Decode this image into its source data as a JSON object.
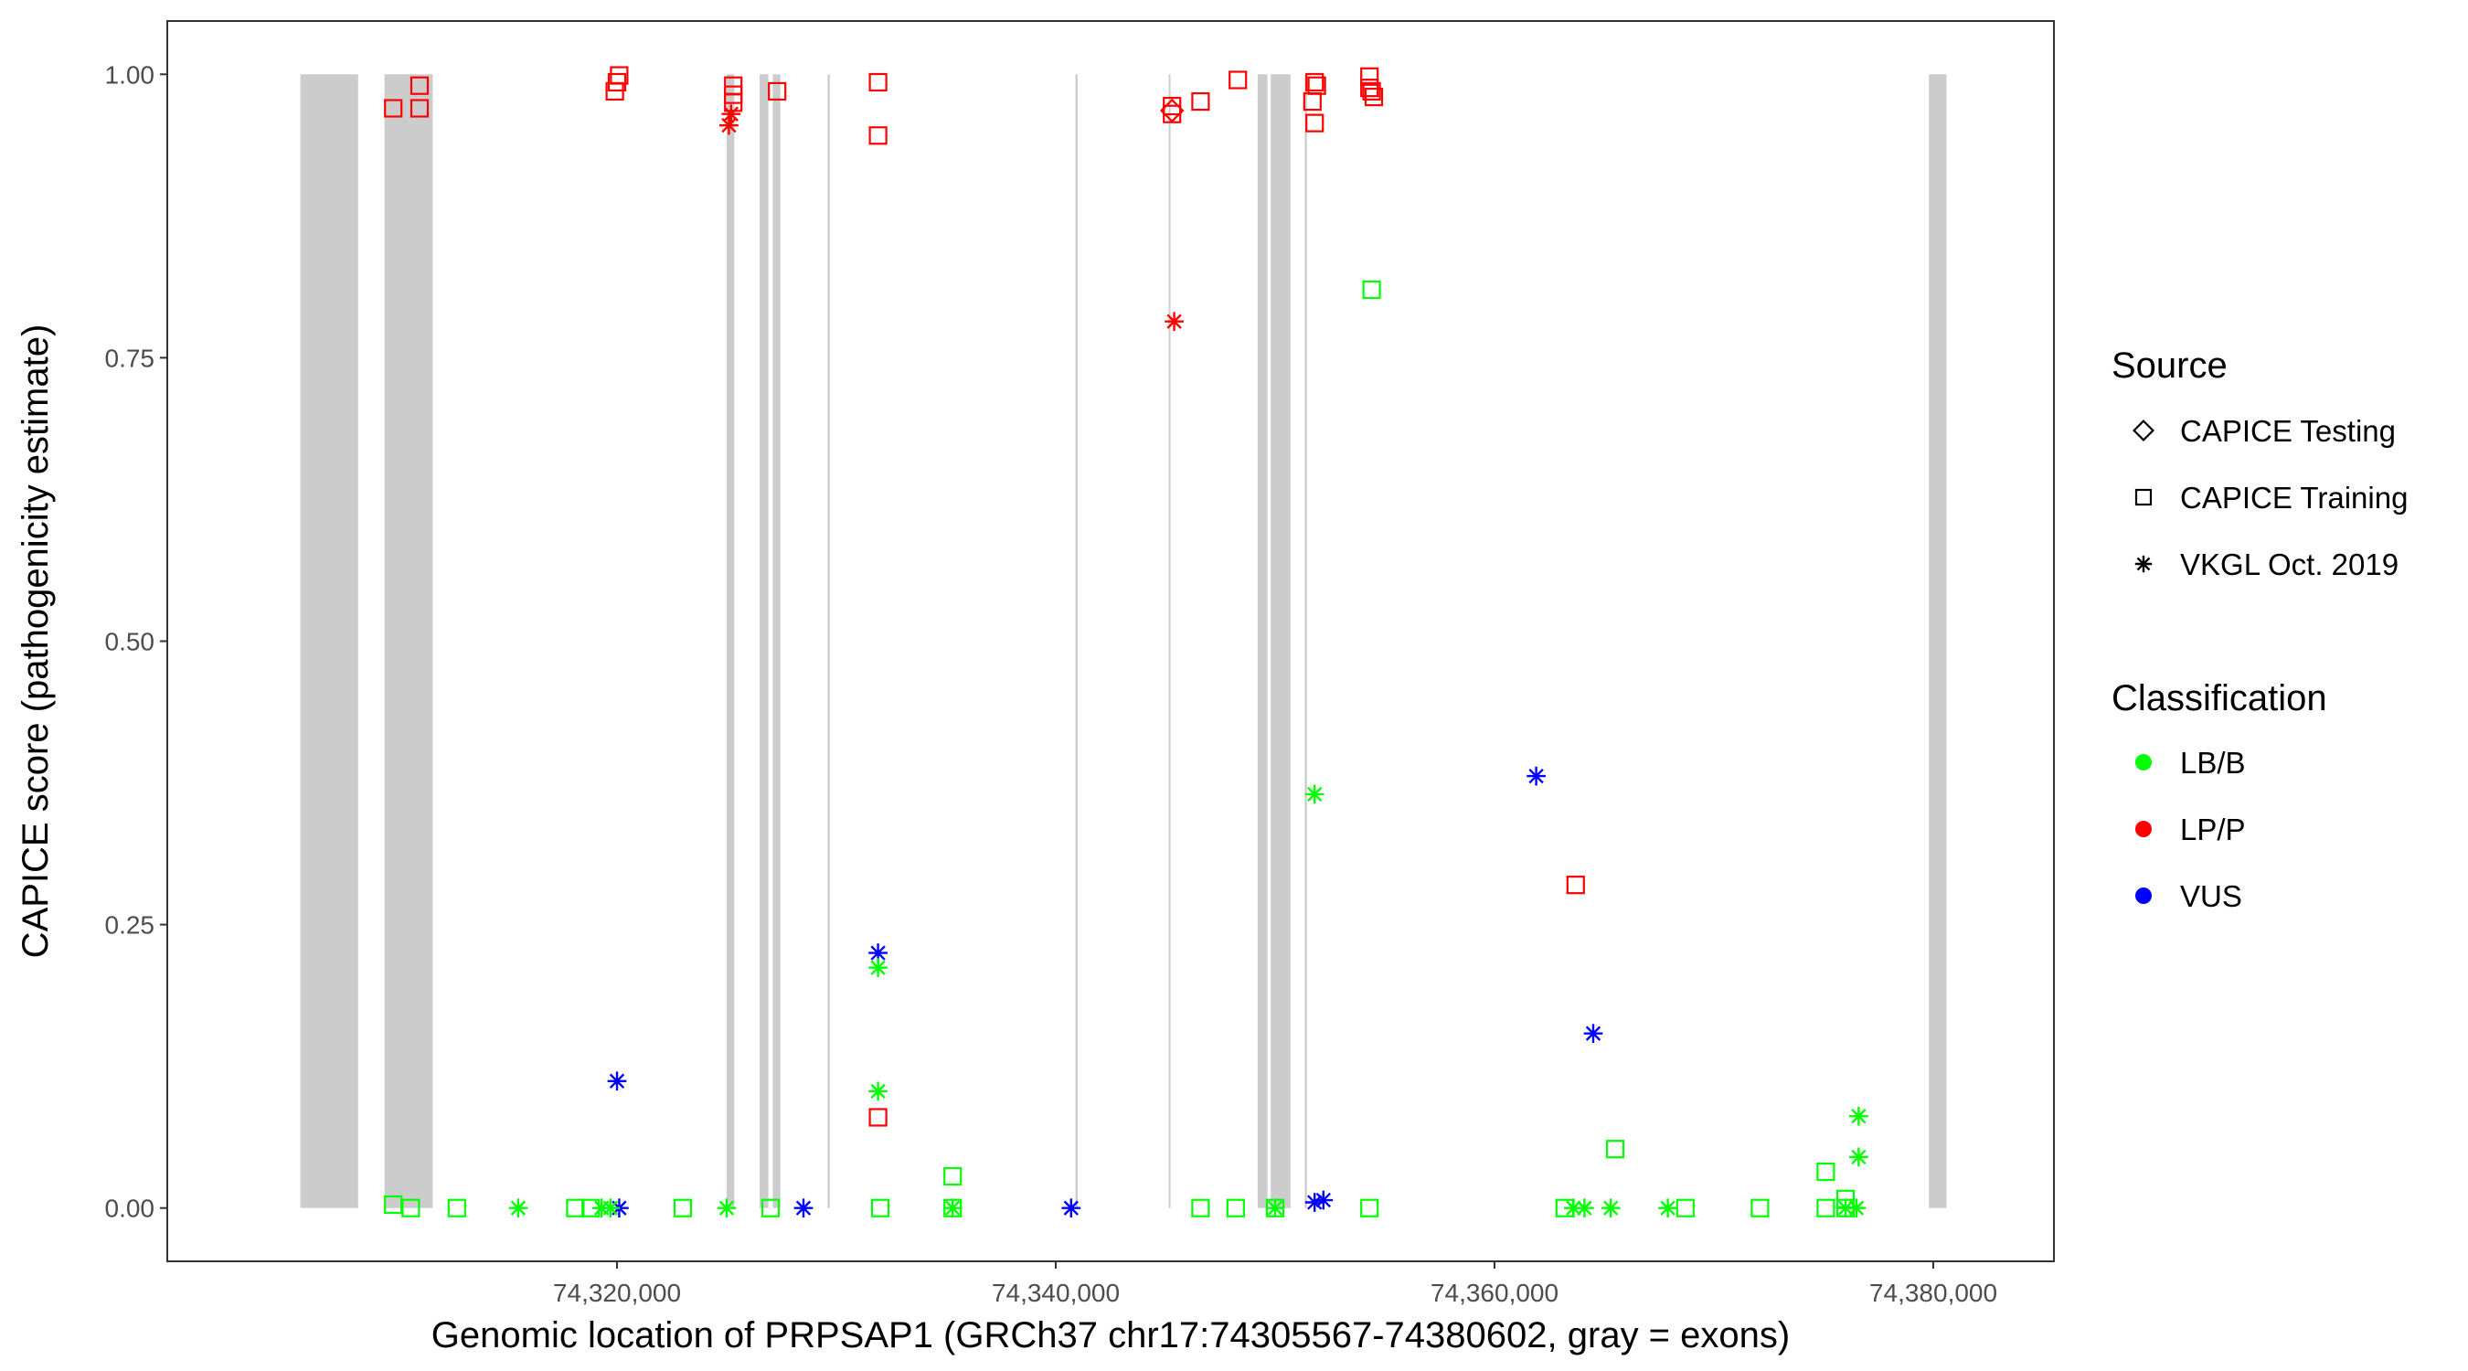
{
  "chart_data": {
    "type": "scatter",
    "xlabel": "Genomic location of PRPSAP1 (GRCh37 chr17:74305567-74380602, gray = exons)",
    "ylabel": "CAPICE score (pathogenicity estimate)",
    "xlim": [
      74299500,
      74385500
    ],
    "ylim": [
      -0.047,
      1.047
    ],
    "x_ticks": [
      74320000,
      74340000,
      74360000,
      74380000
    ],
    "x_tick_labels": [
      "74,320,000",
      "74,340,000",
      "74,360,000",
      "74,380,000"
    ],
    "y_ticks": [
      0,
      0.25,
      0.5,
      0.75,
      1.0
    ],
    "y_tick_labels": [
      "0.00",
      "0.25",
      "0.50",
      "0.75",
      "1.00"
    ],
    "grid": false,
    "exon_color": "#cccccc",
    "exons": [
      [
        74305567,
        74308200
      ],
      [
        74309400,
        74311600
      ],
      [
        74325000,
        74325350
      ],
      [
        74326500,
        74326900
      ],
      [
        74327100,
        74327450
      ],
      [
        74329600,
        74329700
      ],
      [
        74340900,
        74341000
      ],
      [
        74345150,
        74345230
      ],
      [
        74349200,
        74349650
      ],
      [
        74349800,
        74350700
      ],
      [
        74351350,
        74351450
      ],
      [
        74379800,
        74380602
      ]
    ],
    "legend": {
      "position": "right",
      "source_title": "Source",
      "source_items": [
        {
          "label": "CAPICE Testing",
          "shape": "diamond"
        },
        {
          "label": "CAPICE Training",
          "shape": "square"
        },
        {
          "label": "VKGL Oct. 2019",
          "shape": "asterisk"
        }
      ],
      "class_title": "Classification",
      "class_items": [
        {
          "label": "LB/B",
          "color": "#00ff00"
        },
        {
          "label": "LP/P",
          "color": "#ff0000"
        },
        {
          "label": "VUS",
          "color": "#0000ff"
        }
      ]
    },
    "series": [
      {
        "source": "CAPICE Training",
        "class": "LP/P",
        "shape": "square",
        "color": "#ff0000",
        "points": [
          [
            74309800,
            0.97
          ],
          [
            74311000,
            0.97
          ],
          [
            74311000,
            0.99
          ],
          [
            74319900,
            0.985
          ],
          [
            74320000,
            0.993
          ],
          [
            74320100,
            0.999
          ],
          [
            74325300,
            0.99
          ],
          [
            74325300,
            0.982
          ],
          [
            74325300,
            0.975
          ],
          [
            74327300,
            0.985
          ],
          [
            74331900,
            0.993
          ],
          [
            74331900,
            0.946
          ],
          [
            74345300,
            0.972
          ],
          [
            74345300,
            0.965
          ],
          [
            74346600,
            0.976
          ],
          [
            74348300,
            0.995
          ],
          [
            74351800,
            0.993
          ],
          [
            74351900,
            0.99
          ],
          [
            74351700,
            0.976
          ],
          [
            74351800,
            0.957
          ],
          [
            74354300,
            0.998
          ],
          [
            74354300,
            0.988
          ],
          [
            74354400,
            0.985
          ],
          [
            74354500,
            0.98
          ],
          [
            74363700,
            0.285
          ],
          [
            74331900,
            0.08
          ]
        ]
      },
      {
        "source": "CAPICE Training",
        "class": "LB/B",
        "shape": "square",
        "color": "#00ff00",
        "points": [
          [
            74354400,
            0.81
          ],
          [
            74335300,
            0.028
          ],
          [
            74365500,
            0.052
          ],
          [
            74375100,
            0.032
          ],
          [
            74376000,
            0.008
          ],
          [
            74309800,
            0.003
          ],
          [
            74310600,
            0.0
          ],
          [
            74312700,
            0.0
          ],
          [
            74318100,
            0.0
          ],
          [
            74318800,
            0.0
          ],
          [
            74323000,
            0.0
          ],
          [
            74327000,
            0.0
          ],
          [
            74332000,
            0.0
          ],
          [
            74335300,
            0.0
          ],
          [
            74346600,
            0.0
          ],
          [
            74348200,
            0.0
          ],
          [
            74350000,
            0.0
          ],
          [
            74354300,
            0.0
          ],
          [
            74363200,
            0.0
          ],
          [
            74368700,
            0.0
          ],
          [
            74372100,
            0.0
          ],
          [
            74375100,
            0.0
          ],
          [
            74376000,
            0.0
          ]
        ]
      },
      {
        "source": "CAPICE Testing",
        "class": "LP/P",
        "shape": "diamond",
        "color": "#ff0000",
        "points": [
          [
            74345300,
            0.968
          ]
        ]
      },
      {
        "source": "VKGL Oct. 2019",
        "class": "LP/P",
        "shape": "asterisk",
        "color": "#ff0000",
        "points": [
          [
            74325200,
            0.965
          ],
          [
            74325100,
            0.955
          ],
          [
            74345400,
            0.782
          ]
        ]
      },
      {
        "source": "VKGL Oct. 2019",
        "class": "VUS",
        "shape": "asterisk",
        "color": "#0000ff",
        "points": [
          [
            74320000,
            0.112
          ],
          [
            74331900,
            0.225
          ],
          [
            74361900,
            0.381
          ],
          [
            74364500,
            0.154
          ],
          [
            74320100,
            0.0
          ],
          [
            74328500,
            0.0
          ],
          [
            74340700,
            0.0
          ],
          [
            74351800,
            0.005
          ],
          [
            74352200,
            0.007
          ]
        ]
      },
      {
        "source": "VKGL Oct. 2019",
        "class": "LB/B",
        "shape": "asterisk",
        "color": "#00ff00",
        "points": [
          [
            74351800,
            0.365
          ],
          [
            74331900,
            0.212
          ],
          [
            74331900,
            0.103
          ],
          [
            74376600,
            0.081
          ],
          [
            74376600,
            0.045
          ],
          [
            74315500,
            0.0
          ],
          [
            74319300,
            0.0
          ],
          [
            74319700,
            0.0
          ],
          [
            74325000,
            0.0
          ],
          [
            74335300,
            0.0
          ],
          [
            74350000,
            0.0
          ],
          [
            74363600,
            0.0
          ],
          [
            74364100,
            0.0
          ],
          [
            74365300,
            0.0
          ],
          [
            74367900,
            0.0
          ],
          [
            74376000,
            0.0
          ],
          [
            74376500,
            0.0
          ]
        ]
      }
    ]
  }
}
